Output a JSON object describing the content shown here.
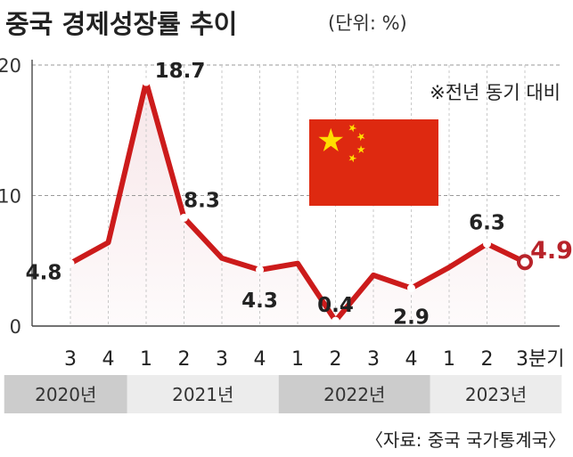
{
  "title": "중국 경제성장률 추이",
  "unit": "(단위: %)",
  "note": "※전년 동기 대비",
  "source": "〈자료: 중국 국가통계국〉",
  "colors": {
    "line": "#cc1b1b",
    "highlight": "#b8232a",
    "area": "#f6e3e6",
    "flag_red": "#de2910",
    "flag_star": "#ffde00",
    "year_band_dark": "#cccccc",
    "year_band_light": "#ececec"
  },
  "icon": "china-flag",
  "chart_data": {
    "type": "line",
    "title": "중국 경제성장률 추이",
    "xlabel": "",
    "ylabel": "",
    "ylim": [
      0,
      20
    ],
    "yticks": [
      0,
      10,
      20
    ],
    "grid": true,
    "quarter_suffix": "분기",
    "categories": [
      "3",
      "4",
      "1",
      "2",
      "3",
      "4",
      "1",
      "2",
      "3",
      "4",
      "1",
      "2",
      "3"
    ],
    "years": [
      {
        "label": "2020년",
        "quarters": 2
      },
      {
        "label": "2021년",
        "quarters": 4
      },
      {
        "label": "2022년",
        "quarters": 4
      },
      {
        "label": "2023년",
        "quarters": 3
      }
    ],
    "values": [
      4.8,
      6.4,
      18.7,
      8.3,
      5.2,
      4.3,
      4.8,
      0.4,
      3.9,
      2.9,
      4.5,
      6.3,
      4.9
    ],
    "labels": [
      "4.8",
      "",
      "18.7",
      "8.3",
      "",
      "4.3",
      "",
      "0.4",
      "",
      "2.9",
      "",
      "6.3",
      "4.9"
    ]
  }
}
